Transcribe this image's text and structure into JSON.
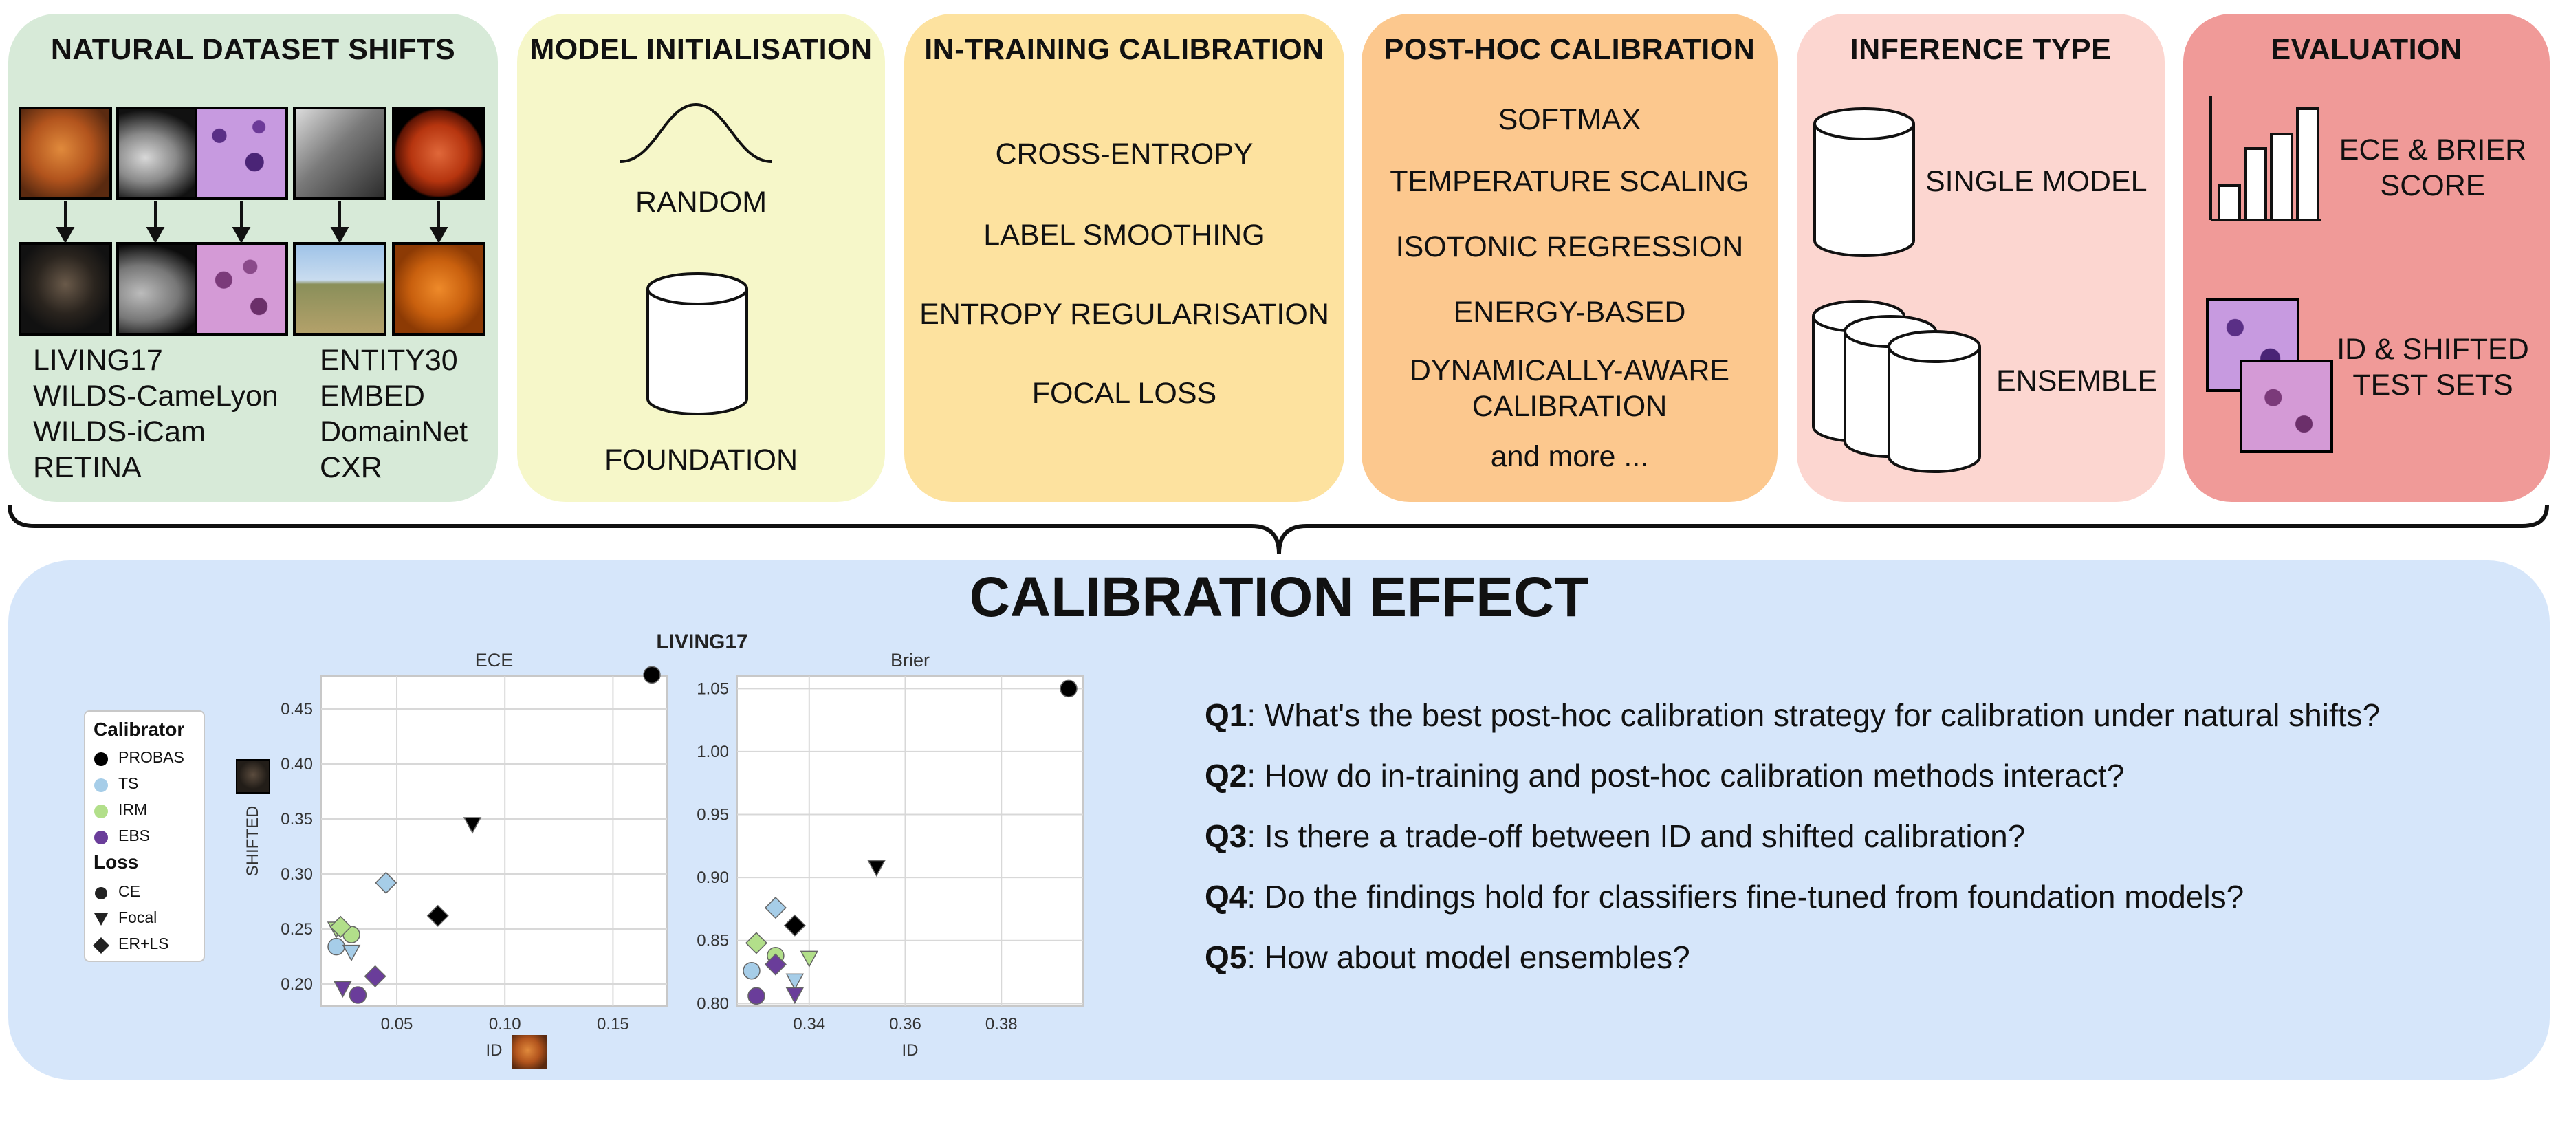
{
  "panels": {
    "natural": {
      "title": "NATURAL DATASET SHIFTS",
      "datasets_left": [
        "LIVING17",
        "WILDS-CameLyon",
        "WILDS-iCam",
        "RETINA"
      ],
      "datasets_right": [
        "ENTITY30",
        "EMBED",
        "DomainNet",
        "CXR"
      ]
    },
    "init": {
      "title": "MODEL INITIALISATION",
      "random": "RANDOM",
      "foundation": "FOUNDATION"
    },
    "intrain": {
      "title": "IN-TRAINING CALIBRATION",
      "items": [
        "CROSS-ENTROPY",
        "LABEL SMOOTHING",
        "ENTROPY REGULARISATION",
        "FOCAL LOSS"
      ]
    },
    "posthoc": {
      "title": "POST-HOC CALIBRATION",
      "items": [
        "SOFTMAX",
        "TEMPERATURE SCALING",
        "ISOTONIC REGRESSION",
        "ENERGY-BASED",
        "DYNAMICALLY-AWARE",
        "CALIBRATION",
        "and more ..."
      ]
    },
    "inference": {
      "title": "INFERENCE TYPE",
      "single": "SINGLE MODEL",
      "ensemble": "ENSEMBLE"
    },
    "evaluation": {
      "title": "EVALUATION",
      "metric_line1": "ECE & BRIER",
      "metric_line2": "SCORE",
      "sets_line1": "ID & SHIFTED",
      "sets_line2": "TEST SETS"
    }
  },
  "colors": {
    "natural": "#d7ead8",
    "init": "#f6f7c9",
    "intrain": "#fde29f",
    "posthoc": "#fcc88e",
    "inference": "#fcd6d0",
    "evaluation": "#f09a98",
    "bottom": "#d6e6fa",
    "probas": "#000000",
    "ts": "#a6cde8",
    "irm": "#b2df8a",
    "ebs": "#6a3d9a"
  },
  "bottom": {
    "title": "CALIBRATION EFFECT",
    "questions": [
      {
        "label": "Q1",
        "text": ": What's the best post-hoc calibration strategy for calibration under natural shifts?"
      },
      {
        "label": "Q2",
        "text": ": How do in-training and post-hoc calibration methods interact?"
      },
      {
        "label": "Q3",
        "text": ": Is there a trade-off between ID and shifted calibration?"
      },
      {
        "label": "Q4",
        "text": ": Do the findings hold for classifiers fine-tuned from foundation models?"
      },
      {
        "label": "Q5",
        "text": ": How about model ensembles?"
      }
    ]
  },
  "legend": {
    "calibrator_title": "Calibrator",
    "calibrators": [
      "PROBAS",
      "TS",
      "IRM",
      "EBS"
    ],
    "loss_title": "Loss",
    "losses": [
      "CE",
      "Focal",
      "ER+LS"
    ]
  },
  "chart_data": [
    {
      "type": "scatter",
      "suptitle": "LIVING17",
      "title": "ECE",
      "xlabel": "ID",
      "ylabel": "SHIFTED",
      "xlim": [
        0.015,
        0.175
      ],
      "ylim": [
        0.18,
        0.48
      ],
      "xticks": [
        0.05,
        0.1,
        0.15
      ],
      "yticks": [
        0.2,
        0.25,
        0.3,
        0.35,
        0.4,
        0.45
      ],
      "xtick_labels": [
        "0.05",
        "0.10",
        "0.15"
      ],
      "ytick_labels": [
        "0.20",
        "0.25",
        "0.30",
        "0.35",
        "0.40",
        "0.45"
      ],
      "grid": true,
      "points": [
        {
          "calibrator": "PROBAS",
          "loss": "CE",
          "x": 0.168,
          "y": 0.481
        },
        {
          "calibrator": "PROBAS",
          "loss": "Focal",
          "x": 0.085,
          "y": 0.345
        },
        {
          "calibrator": "PROBAS",
          "loss": "ER+LS",
          "x": 0.069,
          "y": 0.262
        },
        {
          "calibrator": "TS",
          "loss": "CE",
          "x": 0.022,
          "y": 0.234
        },
        {
          "calibrator": "TS",
          "loss": "Focal",
          "x": 0.029,
          "y": 0.229
        },
        {
          "calibrator": "TS",
          "loss": "ER+LS",
          "x": 0.045,
          "y": 0.292
        },
        {
          "calibrator": "IRM",
          "loss": "CE",
          "x": 0.029,
          "y": 0.245
        },
        {
          "calibrator": "IRM",
          "loss": "Focal",
          "x": 0.022,
          "y": 0.25
        },
        {
          "calibrator": "IRM",
          "loss": "ER+LS",
          "x": 0.024,
          "y": 0.252
        },
        {
          "calibrator": "EBS",
          "loss": "CE",
          "x": 0.032,
          "y": 0.19
        },
        {
          "calibrator": "EBS",
          "loss": "Focal",
          "x": 0.025,
          "y": 0.196
        },
        {
          "calibrator": "EBS",
          "loss": "ER+LS",
          "x": 0.04,
          "y": 0.207
        }
      ]
    },
    {
      "type": "scatter",
      "title": "Brier",
      "xlabel": "ID",
      "ylabel": "",
      "xlim": [
        0.325,
        0.397
      ],
      "ylim": [
        0.798,
        1.06
      ],
      "xticks": [
        0.34,
        0.36,
        0.38
      ],
      "yticks": [
        0.8,
        0.85,
        0.9,
        0.95,
        1.0,
        1.05
      ],
      "xtick_labels": [
        "0.34",
        "0.36",
        "0.38"
      ],
      "ytick_labels": [
        "0.80",
        "0.85",
        "0.90",
        "0.95",
        "1.00",
        "1.05"
      ],
      "grid": true,
      "points": [
        {
          "calibrator": "PROBAS",
          "loss": "CE",
          "x": 0.394,
          "y": 1.05
        },
        {
          "calibrator": "PROBAS",
          "loss": "Focal",
          "x": 0.354,
          "y": 0.908
        },
        {
          "calibrator": "PROBAS",
          "loss": "ER+LS",
          "x": 0.337,
          "y": 0.862
        },
        {
          "calibrator": "TS",
          "loss": "CE",
          "x": 0.328,
          "y": 0.826
        },
        {
          "calibrator": "TS",
          "loss": "Focal",
          "x": 0.337,
          "y": 0.818
        },
        {
          "calibrator": "TS",
          "loss": "ER+LS",
          "x": 0.333,
          "y": 0.876
        },
        {
          "calibrator": "IRM",
          "loss": "CE",
          "x": 0.333,
          "y": 0.838
        },
        {
          "calibrator": "IRM",
          "loss": "Focal",
          "x": 0.34,
          "y": 0.836
        },
        {
          "calibrator": "IRM",
          "loss": "ER+LS",
          "x": 0.329,
          "y": 0.848
        },
        {
          "calibrator": "EBS",
          "loss": "CE",
          "x": 0.329,
          "y": 0.806
        },
        {
          "calibrator": "EBS",
          "loss": "Focal",
          "x": 0.337,
          "y": 0.807
        },
        {
          "calibrator": "EBS",
          "loss": "ER+LS",
          "x": 0.333,
          "y": 0.831
        }
      ]
    }
  ]
}
